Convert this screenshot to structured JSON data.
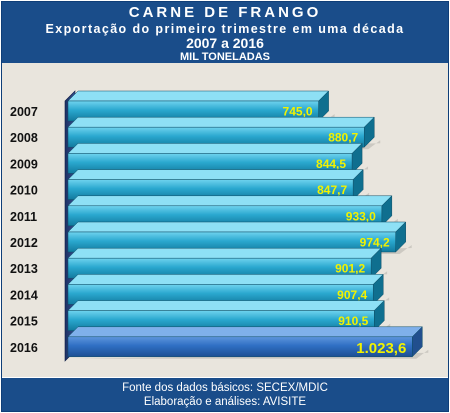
{
  "header": {
    "title": "CARNE DE FRANGO",
    "subtitle": "Exportação do primeiro trimestre em uma década",
    "period": "2007 a 2016",
    "unit": "MIL TONELADAS"
  },
  "footer": {
    "source": "Fonte dos dados básicos: SECEX/MDIC",
    "credit": "Elaboração e análises: AVISITE"
  },
  "colors": {
    "bar": "#2aa8cf",
    "bar_highlight": "#2f6fc3",
    "value_label": "#f2f200",
    "header_bg": "#1a4d8a",
    "plot_bg": "#e9e5dd"
  },
  "chart_data": {
    "type": "bar",
    "orientation": "horizontal",
    "title": "CARNE DE FRANGO",
    "categories": [
      "2007",
      "2008",
      "2009",
      "2010",
      "2011",
      "2012",
      "2013",
      "2014",
      "2015",
      "2016"
    ],
    "values": [
      745.0,
      880.7,
      844.5,
      847.7,
      933.0,
      974.2,
      901.2,
      907.4,
      910.5,
      1023.6
    ],
    "value_labels": [
      "745,0",
      "880,7",
      "844,5",
      "847,7",
      "933,0",
      "974,2",
      "901,2",
      "907,4",
      "910,5",
      "1.023,6"
    ],
    "highlight_category": "2016",
    "xlim": [
      0,
      1100
    ],
    "grid": false
  }
}
